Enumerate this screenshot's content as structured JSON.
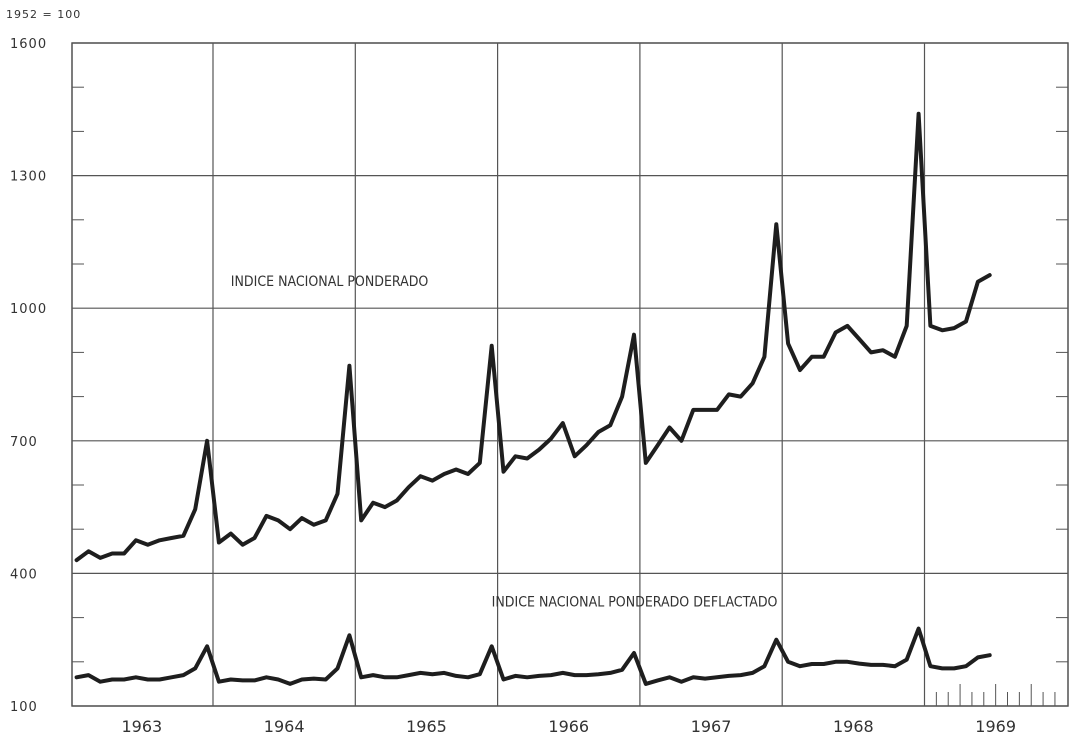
{
  "chart_data": {
    "type": "line",
    "unit_label": "1952 = 100",
    "ylim": [
      100,
      1600
    ],
    "yticks": [
      100,
      400,
      700,
      1000,
      1300,
      1600
    ],
    "y_labels": [
      "100",
      "400",
      "700",
      "1000",
      "1300",
      "1600"
    ],
    "years": [
      "1963",
      "1964",
      "1965",
      "1966",
      "1967",
      "1968",
      "1969"
    ],
    "x_start": "1963-01",
    "grid": true,
    "series": [
      {
        "name": "INDICE NACIONAL PONDERADO",
        "values": [
          430,
          450,
          435,
          445,
          445,
          475,
          465,
          475,
          480,
          485,
          545,
          700,
          470,
          490,
          465,
          480,
          530,
          520,
          500,
          525,
          510,
          520,
          580,
          870,
          520,
          560,
          550,
          565,
          595,
          620,
          610,
          625,
          635,
          625,
          650,
          915,
          630,
          665,
          660,
          680,
          705,
          740,
          665,
          690,
          720,
          735,
          800,
          940,
          650,
          690,
          730,
          700,
          770,
          770,
          770,
          805,
          800,
          830,
          890,
          1190,
          920,
          860,
          890,
          890,
          945,
          960,
          930,
          900,
          905,
          890,
          960,
          1440,
          960,
          950,
          955,
          970,
          1060,
          1075
        ]
      },
      {
        "name": "INDICE NACIONAL PONDERADO DEFLACTADO",
        "values": [
          165,
          170,
          155,
          160,
          160,
          165,
          160,
          160,
          165,
          170,
          185,
          235,
          155,
          160,
          158,
          158,
          165,
          160,
          150,
          160,
          162,
          160,
          185,
          260,
          165,
          170,
          165,
          165,
          170,
          175,
          172,
          175,
          168,
          165,
          172,
          235,
          160,
          168,
          165,
          168,
          170,
          175,
          170,
          170,
          172,
          175,
          182,
          220,
          150,
          158,
          165,
          155,
          165,
          162,
          165,
          168,
          170,
          175,
          190,
          250,
          200,
          190,
          195,
          195,
          200,
          200,
          196,
          193,
          193,
          190,
          205,
          275,
          190,
          185,
          185,
          190,
          210,
          215
        ]
      }
    ],
    "annotations": [
      {
        "text": "INDICE NACIONAL PONDERADO",
        "x": "1964-02",
        "y": 1050
      },
      {
        "text": "INDICE NACIONAL PONDERADO DEFLACTADO",
        "x": "1965-12",
        "y": 325
      }
    ]
  }
}
